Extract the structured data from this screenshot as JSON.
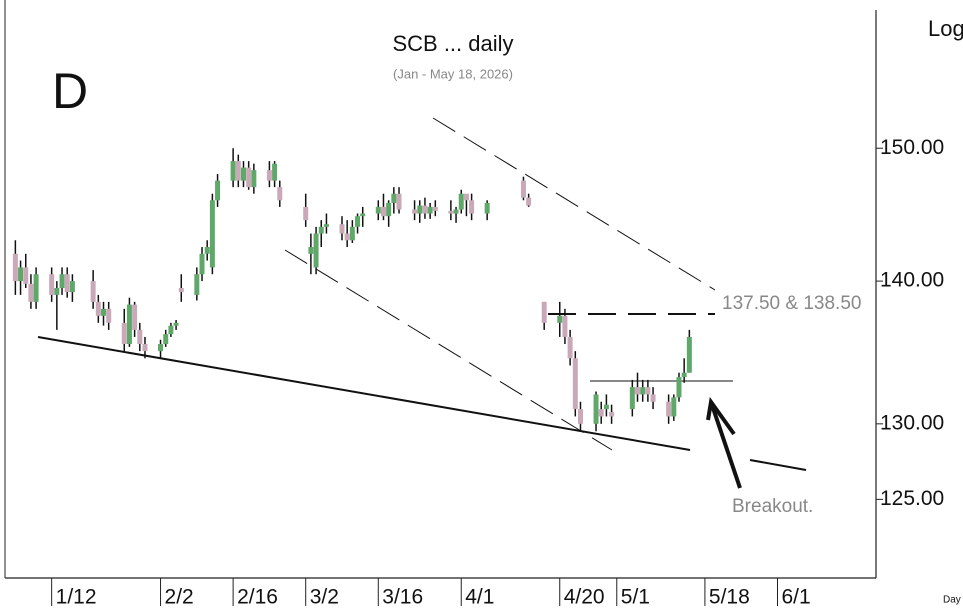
{
  "chart_data": {
    "type": "candlestick",
    "title": "SCB ... daily",
    "subtitle": "(Jan - May 18, 2026)",
    "panel_label": "D",
    "scale_label": "Log",
    "period_label": "Day",
    "annotations": [
      "137.50 & 138.50",
      "Breakout."
    ],
    "log_scale": true,
    "up_color": "#5fa86a",
    "down_color": "#c9a8b8",
    "xlim": [
      3,
      171
    ],
    "ylim": [
      120,
      162
    ],
    "xticks": [
      {
        "value": 12,
        "label": "1/12"
      },
      {
        "value": 33,
        "label": "2/2"
      },
      {
        "value": 47,
        "label": "2/16"
      },
      {
        "value": 61,
        "label": "3/2"
      },
      {
        "value": 75,
        "label": "3/16"
      },
      {
        "value": 91,
        "label": "4/1"
      },
      {
        "value": 110,
        "label": "4/20"
      },
      {
        "value": 121,
        "label": "5/1"
      },
      {
        "value": 138,
        "label": "5/18"
      },
      {
        "value": 152,
        "label": "6/1"
      }
    ],
    "yticks": [
      {
        "value": 125,
        "label": "125.00"
      },
      {
        "value": 130,
        "label": "130.00"
      },
      {
        "value": 140,
        "label": "140.00"
      },
      {
        "value": 150,
        "label": "150.00"
      }
    ],
    "x": [
      5,
      6,
      7,
      8,
      9,
      12,
      13,
      14,
      15,
      16,
      20,
      21,
      22,
      23,
      26,
      27,
      28,
      29,
      30,
      33,
      34,
      35,
      36,
      37,
      40,
      41,
      42,
      43,
      44,
      47,
      48,
      49,
      50,
      51,
      54,
      55,
      56,
      61,
      62,
      63,
      64,
      65,
      68,
      69,
      70,
      71,
      72,
      75,
      76,
      77,
      78,
      79,
      82,
      83,
      84,
      85,
      86,
      89,
      90,
      91,
      92,
      93,
      96,
      103,
      104,
      107,
      110,
      111,
      112,
      113,
      114,
      117,
      118,
      119,
      120,
      124,
      125,
      126,
      127,
      128,
      131,
      132,
      133,
      134,
      135
    ],
    "open": [
      142,
      140,
      141,
      139.8,
      138.5,
      140.5,
      139,
      139.5,
      140.5,
      139.2,
      140,
      138.5,
      137.5,
      138,
      137,
      135.5,
      138.3,
      136.5,
      135.5,
      135,
      135.5,
      136.2,
      136.8,
      139.5,
      139,
      140.5,
      142,
      141,
      146,
      147.5,
      149,
      147.5,
      148.5,
      147,
      148.3,
      147.5,
      147,
      145.5,
      142,
      141,
      143.5,
      144,
      144.2,
      143.5,
      143,
      144,
      144.8,
      145,
      145.5,
      144.8,
      145.8,
      146.5,
      145.3,
      145,
      145.6,
      145,
      145.5,
      145.2,
      145,
      145.3,
      146.5,
      146,
      145,
      147.5,
      146.2,
      138.5,
      137,
      137.5,
      136,
      134.5,
      131,
      130,
      131,
      131,
      130.8,
      131,
      132.5,
      132,
      132.5,
      132,
      131.5,
      130.5,
      131.8,
      133.2,
      133.5
    ],
    "high": [
      143,
      141.5,
      142,
      140.5,
      141,
      141,
      140,
      141,
      141,
      140.5,
      140.8,
      139,
      138.5,
      138.5,
      138,
      138.8,
      138.5,
      137,
      136,
      135.8,
      136.5,
      137,
      137.2,
      140.5,
      141,
      142.5,
      143,
      146.5,
      148,
      150,
      149.5,
      149,
      149,
      148.8,
      149,
      149,
      147.5,
      146.5,
      143.5,
      144,
      144.5,
      145,
      144.8,
      144.5,
      144.5,
      145,
      145.5,
      146,
      146.5,
      146,
      147,
      147,
      146,
      146,
      146.2,
      145.8,
      146,
      146,
      145.5,
      146.8,
      146.3,
      146.5,
      146,
      147.8,
      146.5,
      138.5,
      138.5,
      138,
      136.5,
      135,
      131.5,
      132.2,
      131.5,
      132,
      131.3,
      133,
      133.5,
      133,
      133,
      132.5,
      132,
      132,
      133.5,
      134.5,
      136.5
    ],
    "low": [
      139,
      139,
      139.5,
      138,
      138,
      138.5,
      136.5,
      139,
      138.8,
      138.5,
      138,
      137,
      136.8,
      136.5,
      135,
      135.3,
      136,
      135,
      134.5,
      134.5,
      135.3,
      136,
      136.5,
      138.5,
      138.6,
      140,
      141.5,
      140.5,
      145.5,
      147,
      147,
      147,
      146.8,
      146.5,
      147,
      147,
      145.5,
      144,
      140.5,
      140.5,
      142.5,
      143.5,
      143,
      142.5,
      142.8,
      143.5,
      144,
      144.5,
      144.5,
      144,
      145,
      145,
      144.5,
      144.3,
      144.6,
      144.6,
      144.8,
      144.5,
      144.3,
      145,
      144.8,
      144.5,
      144.5,
      146,
      145.5,
      136.5,
      136,
      135.5,
      134,
      130.5,
      129.5,
      129.5,
      130,
      130.5,
      130,
      130.5,
      131.5,
      131.5,
      131.5,
      131,
      130,
      130.2,
      131.5,
      132.8,
      133.5
    ],
    "close": [
      140,
      141,
      139.8,
      138.5,
      140.5,
      139,
      139.5,
      140.5,
      139.2,
      140,
      138.5,
      137.5,
      138,
      137,
      135.5,
      138.3,
      136.5,
      135.5,
      135,
      135.5,
      136.2,
      136.8,
      137,
      139.2,
      140.5,
      142,
      142.5,
      146,
      147.5,
      149,
      147.5,
      148.5,
      147,
      148.3,
      147.5,
      148.8,
      146,
      144.5,
      142.5,
      143.5,
      144,
      144.2,
      143.5,
      143,
      144,
      144.8,
      145,
      145.5,
      144.8,
      145.8,
      146.5,
      145.3,
      145,
      145.6,
      145,
      145.5,
      145.2,
      145,
      145.3,
      146.5,
      146,
      145,
      145.8,
      146.2,
      145.6,
      137,
      137.5,
      136,
      134.5,
      131,
      130,
      132,
      130.5,
      131.3,
      130.5,
      132.5,
      132,
      132.5,
      132,
      131.5,
      130.5,
      131.8,
      133.2,
      133.5,
      136
    ]
  }
}
